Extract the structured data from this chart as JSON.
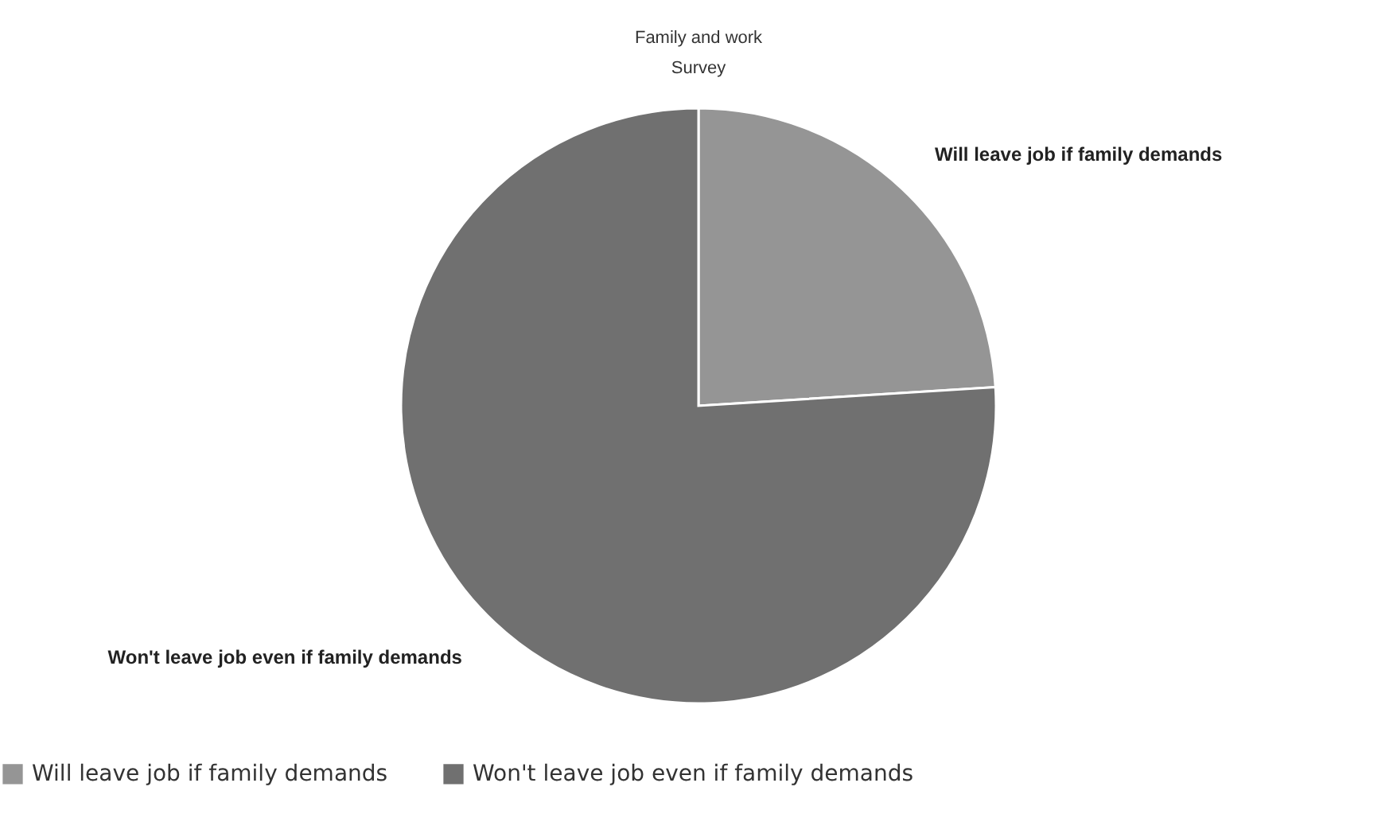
{
  "chart_data": {
    "type": "pie",
    "title": "Family and work",
    "subtitle": "Survey",
    "categories": [
      "Will leave job if family demands",
      "Won't leave job even if family demands"
    ],
    "values": [
      24,
      76
    ],
    "colors": [
      "#959595",
      "#707070"
    ],
    "legend": "bottom"
  }
}
